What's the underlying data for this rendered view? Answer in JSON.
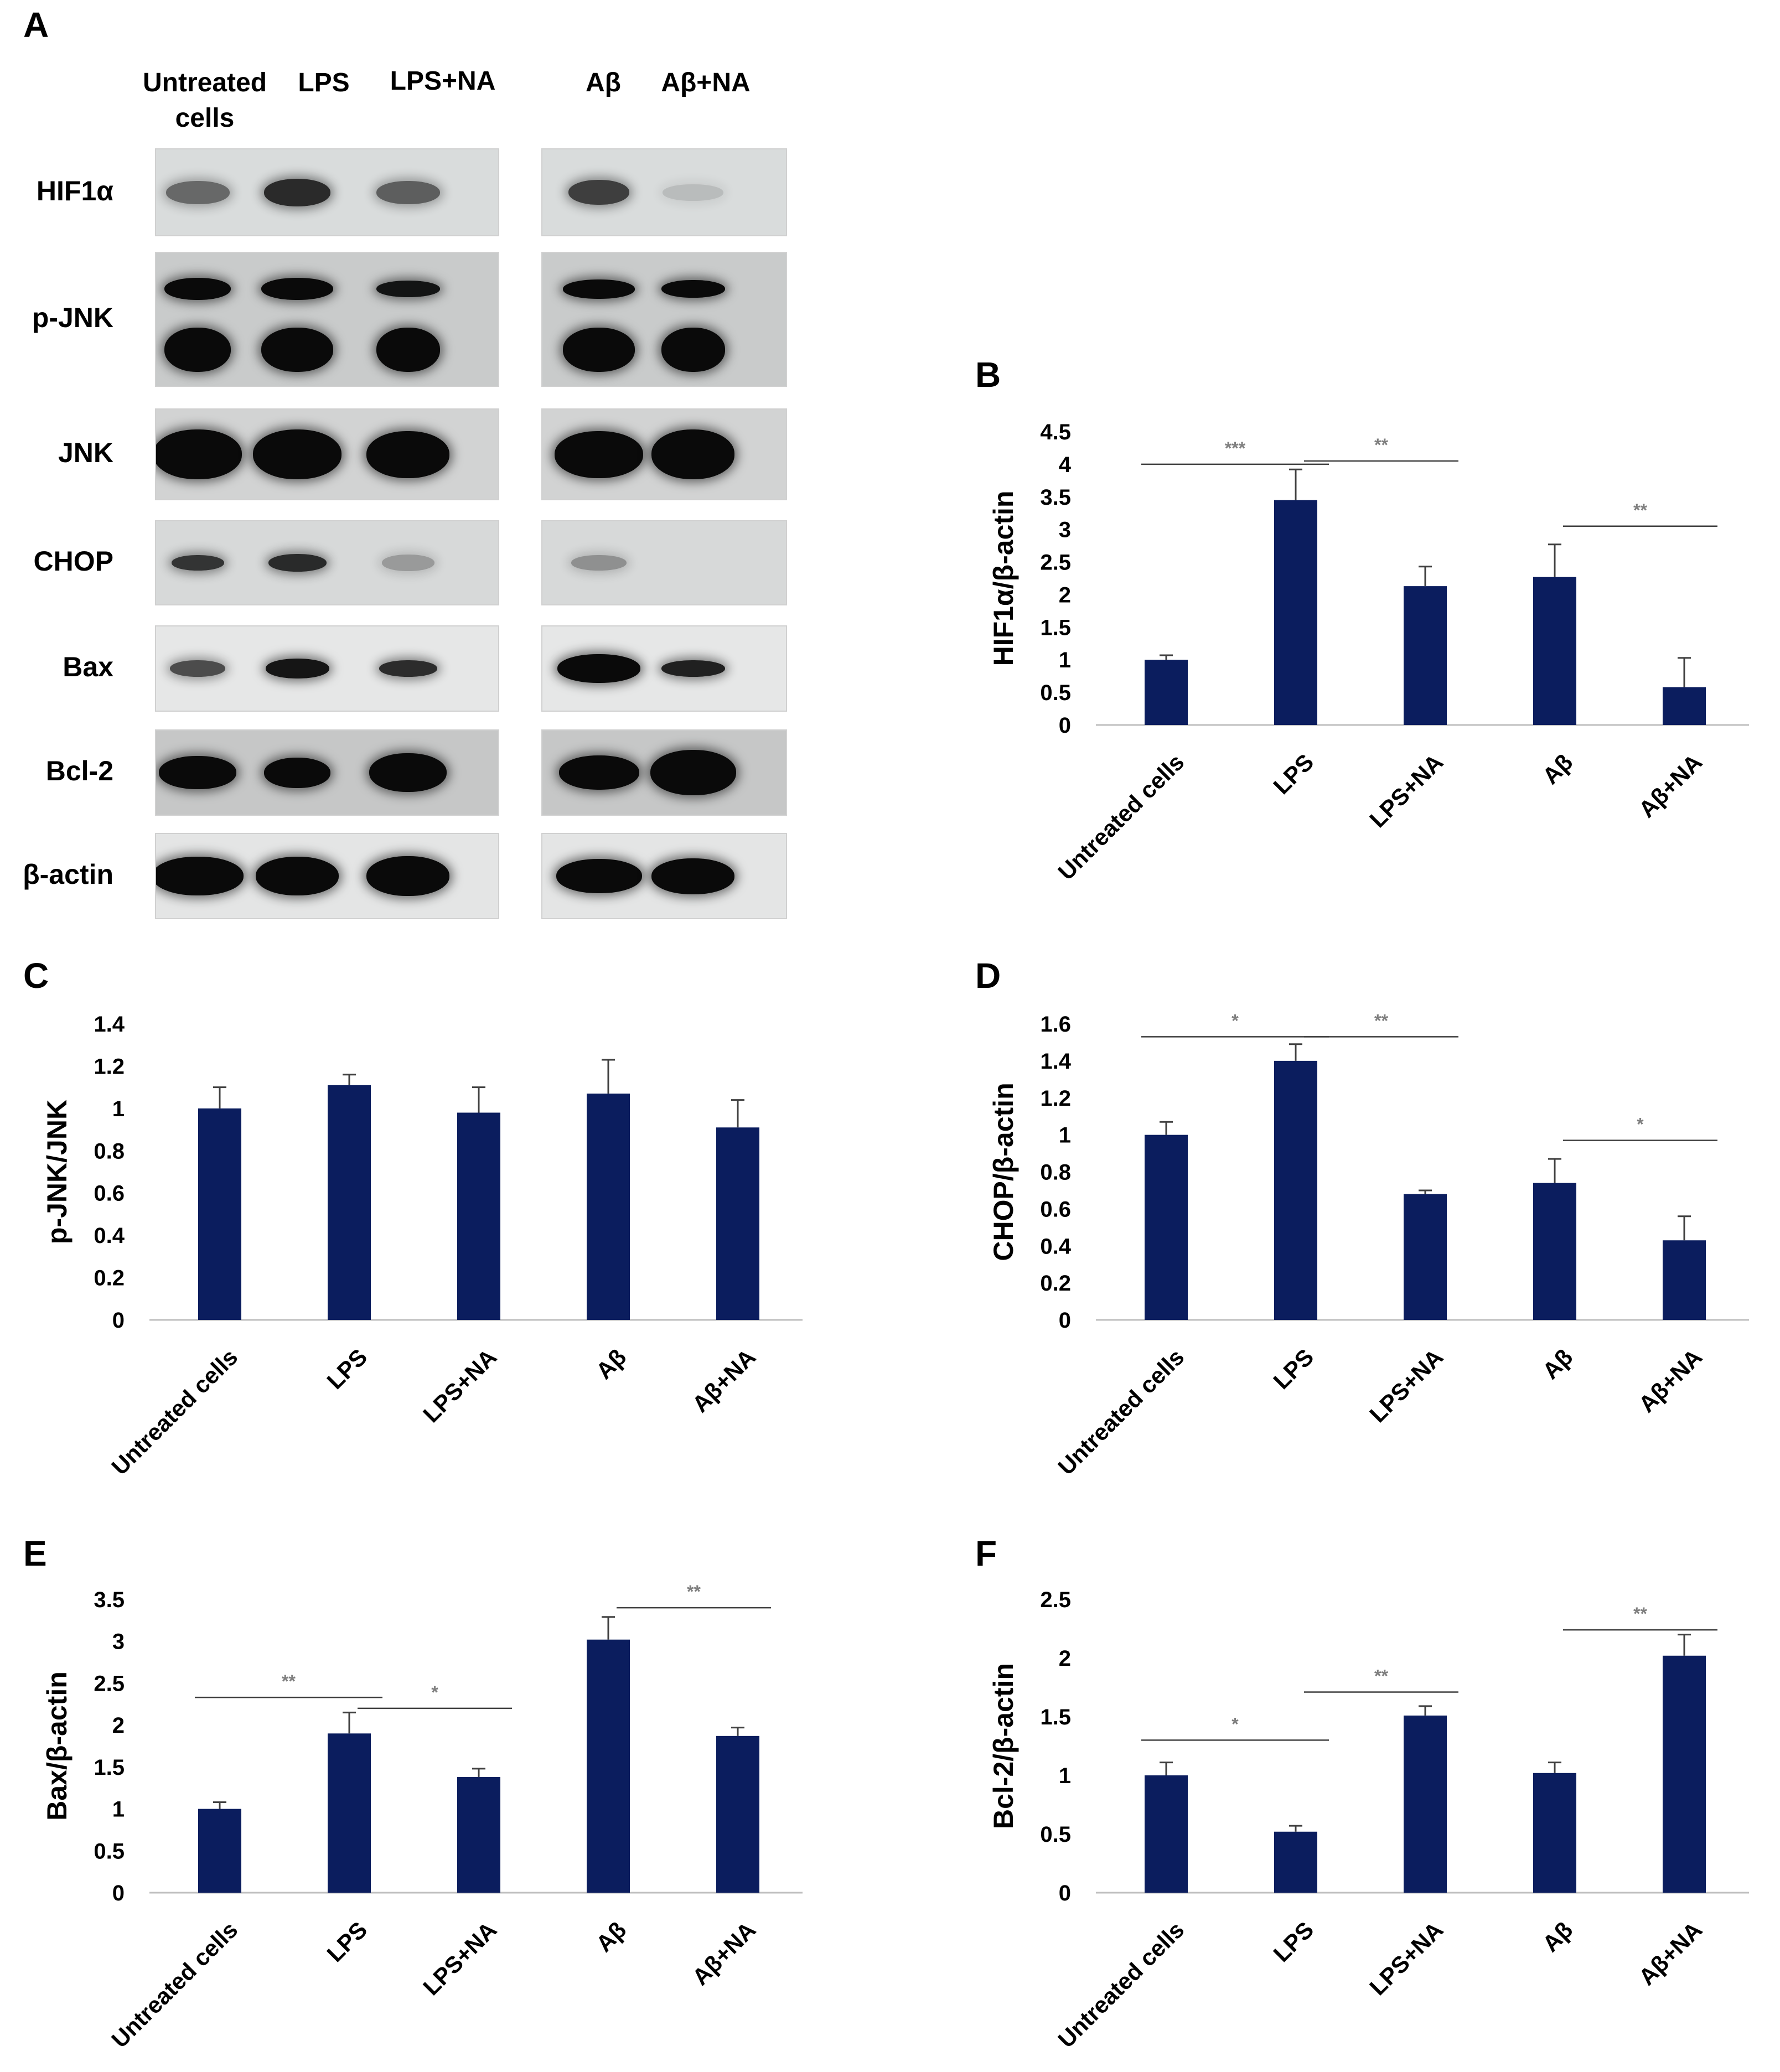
{
  "panels": {
    "a": "A",
    "b": "B",
    "c": "C",
    "d": "D",
    "e": "E",
    "f": "F"
  },
  "blot": {
    "left_lanes": [
      "Untreated\ncells",
      "LPS",
      "LPS+NA"
    ],
    "right_lanes": [
      "Aβ",
      "Aβ+NA"
    ],
    "rows": [
      {
        "label": "HIF1α",
        "bg": "#d9dcdc"
      },
      {
        "label": "p-JNK",
        "bg": "#c9cbcb"
      },
      {
        "label": "JNK",
        "bg": "#d2d3d3"
      },
      {
        "label": "CHOP",
        "bg": "#d7d9d9"
      },
      {
        "label": "Bax",
        "bg": "#e6e7e7"
      },
      {
        "label": "Bcl-2",
        "bg": "#c6c7c7"
      },
      {
        "label": "β-actin",
        "bg": "#e4e5e5"
      }
    ]
  },
  "colors": {
    "bar": "#0b1d5e",
    "axis": "#bfbfbf",
    "sigline": "#404040",
    "star": "#7f7f7f",
    "errbar": "#404040"
  },
  "chart_data": [
    {
      "id": "B",
      "type": "bar",
      "ylabel": "HIF1α/β-actin",
      "categories": [
        "Untreated cells",
        "LPS",
        "LPS+NA",
        "Aβ",
        "Aβ+NA"
      ],
      "values": [
        1.0,
        3.45,
        2.13,
        2.27,
        0.58
      ],
      "errors": [
        0.07,
        0.47,
        0.3,
        0.5,
        0.45
      ],
      "ylim": [
        0,
        4.5
      ],
      "ticks": [
        "0",
        "0.5",
        "1",
        "1.5",
        "2",
        "2.5",
        "3",
        "3.5",
        "4",
        "4.5"
      ],
      "significance": [
        {
          "from": 0,
          "to": 1,
          "y": 4.0,
          "label": "***"
        },
        {
          "from": 1,
          "to": 2,
          "y": 4.05,
          "label": "**"
        },
        {
          "from": 3,
          "to": 4,
          "y": 3.05,
          "label": "**"
        }
      ]
    },
    {
      "id": "C",
      "type": "bar",
      "ylabel": "p-JNK/JNK",
      "categories": [
        "Untreated cells",
        "LPS",
        "LPS+NA",
        "Aβ",
        "Aβ+NA"
      ],
      "values": [
        1.0,
        1.11,
        0.98,
        1.07,
        0.91
      ],
      "errors": [
        0.1,
        0.05,
        0.12,
        0.16,
        0.13
      ],
      "ylim": [
        0,
        1.4
      ],
      "ticks": [
        "0",
        "0.2",
        "0.4",
        "0.6",
        "0.8",
        "1",
        "1.2",
        "1.4"
      ],
      "significance": []
    },
    {
      "id": "D",
      "type": "bar",
      "ylabel": "CHOP/β-actin",
      "categories": [
        "Untreated cells",
        "LPS",
        "LPS+NA",
        "Aβ",
        "Aβ+NA"
      ],
      "values": [
        1.0,
        1.4,
        0.68,
        0.74,
        0.43
      ],
      "errors": [
        0.07,
        0.09,
        0.02,
        0.13,
        0.13
      ],
      "ylim": [
        0,
        1.6
      ],
      "ticks": [
        "0",
        "0.2",
        "0.4",
        "0.6",
        "0.8",
        "1",
        "1.2",
        "1.4",
        "1.6"
      ],
      "significance": [
        {
          "from": 0,
          "to": 1,
          "y": 1.53,
          "label": "*"
        },
        {
          "from": 1,
          "to": 2,
          "y": 1.53,
          "label": "**"
        },
        {
          "from": 3,
          "to": 4,
          "y": 0.97,
          "label": "*"
        }
      ]
    },
    {
      "id": "E",
      "type": "bar",
      "ylabel": "Bax/β-actin",
      "categories": [
        "Untreated cells",
        "LPS",
        "LPS+NA",
        "Aβ",
        "Aβ+NA"
      ],
      "values": [
        1.0,
        1.9,
        1.38,
        3.02,
        1.87
      ],
      "errors": [
        0.08,
        0.25,
        0.1,
        0.27,
        0.1
      ],
      "ylim": [
        0,
        3.5
      ],
      "ticks": [
        "0",
        "0.5",
        "1",
        "1.5",
        "2",
        "2.5",
        "3",
        "3.5"
      ],
      "significance": [
        {
          "from": 0,
          "to": 1,
          "y": 2.33,
          "label": "**"
        },
        {
          "from": 1,
          "to": 2,
          "y": 2.2,
          "label": "*"
        },
        {
          "from": 3,
          "to": 4,
          "y": 3.4,
          "label": "**"
        }
      ]
    },
    {
      "id": "F",
      "type": "bar",
      "ylabel": "Bcl-2/β-actin",
      "categories": [
        "Untreated cells",
        "LPS",
        "LPS+NA",
        "Aβ",
        "Aβ+NA"
      ],
      "values": [
        1.0,
        0.52,
        1.51,
        1.02,
        2.02
      ],
      "errors": [
        0.11,
        0.05,
        0.08,
        0.09,
        0.18
      ],
      "ylim": [
        0,
        2.5
      ],
      "ticks": [
        "0",
        "0.5",
        "1",
        "1.5",
        "2",
        "2.5"
      ],
      "significance": [
        {
          "from": 0,
          "to": 1,
          "y": 1.3,
          "label": "*"
        },
        {
          "from": 1,
          "to": 2,
          "y": 1.71,
          "label": "**"
        },
        {
          "from": 3,
          "to": 4,
          "y": 2.24,
          "label": "**"
        }
      ]
    }
  ]
}
